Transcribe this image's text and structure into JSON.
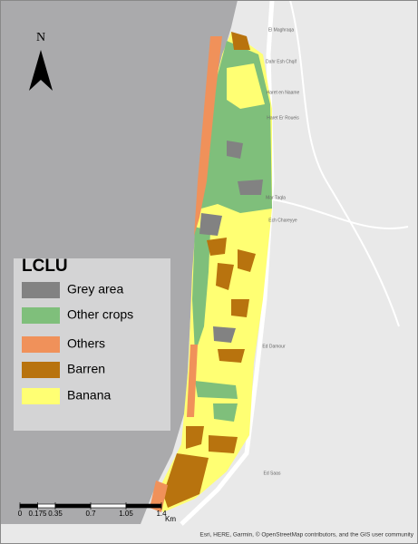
{
  "north_arrow": {
    "label": "N"
  },
  "legend": {
    "title": "LCLU",
    "items": [
      {
        "label": "Grey area",
        "color": "#828282"
      },
      {
        "label": "Other crops",
        "color": "#7fbf7b"
      },
      {
        "label": "Others",
        "color": "#f0915a"
      },
      {
        "label": "Barren",
        "color": "#b8730e"
      },
      {
        "label": "Banana",
        "color": "#ffff73"
      }
    ]
  },
  "scale_bar": {
    "ticks": [
      0,
      0.175,
      0.35,
      0.7,
      1.05,
      1.4
    ],
    "unit": "Km"
  },
  "place_labels": [
    "El Maghraqa",
    "Dahr Esh Chqif",
    "Haret en Naame",
    "Haret Er Roueis",
    "Mar Taqla",
    "Ech Chareyye",
    "Ed Damour",
    "Ed Saas"
  ],
  "attribution": "Esri, HERE, Garmin, © OpenStreetMap contributors, and the GIS user community"
}
